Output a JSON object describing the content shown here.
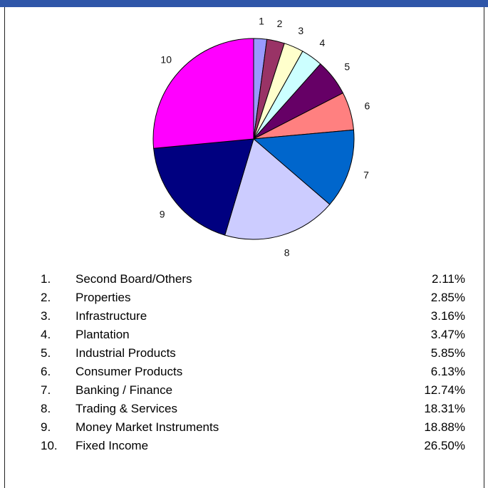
{
  "colors": {
    "header_bar": "#2f56a8",
    "slices": [
      "#9999ff",
      "#993366",
      "#ffffcc",
      "#ccffff",
      "#660066",
      "#ff8080",
      "#0066cc",
      "#ccccff",
      "#000080",
      "#ff00ff"
    ]
  },
  "chart_data": {
    "type": "pie",
    "categories": [
      "1",
      "2",
      "3",
      "4",
      "5",
      "6",
      "7",
      "8",
      "9",
      "10"
    ],
    "values": [
      2.11,
      2.85,
      3.16,
      3.47,
      5.85,
      6.13,
      12.74,
      18.31,
      18.88,
      26.5
    ],
    "title": "",
    "legend": [
      {
        "num": "1.",
        "name": "Second Board/Others",
        "pct": "2.11%"
      },
      {
        "num": "2.",
        "name": "Properties",
        "pct": "2.85%"
      },
      {
        "num": "3.",
        "name": "Infrastructure",
        "pct": "3.16%"
      },
      {
        "num": "4.",
        "name": "Plantation",
        "pct": "3.47%"
      },
      {
        "num": "5.",
        "name": "Industrial Products",
        "pct": "5.85%"
      },
      {
        "num": "6.",
        "name": "Consumer Products",
        "pct": "6.13%"
      },
      {
        "num": "7.",
        "name": "Banking / Finance",
        "pct": "12.74%"
      },
      {
        "num": "8.",
        "name": "Trading & Services",
        "pct": "18.31%"
      },
      {
        "num": "9.",
        "name": "Money Market Instruments",
        "pct": "18.88%"
      },
      {
        "num": "10.",
        "name": "Fixed Income",
        "pct": "26.50%"
      }
    ],
    "legend_placement": "bottom"
  }
}
